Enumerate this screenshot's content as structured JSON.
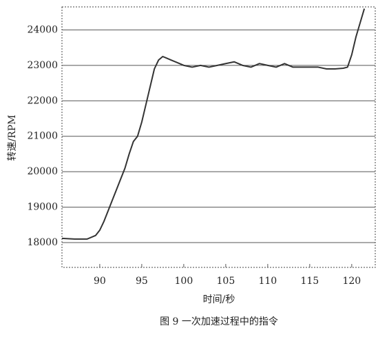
{
  "chart_data": {
    "type": "line",
    "y_label": "转速/RPM",
    "x_label": "时间/秒",
    "caption": "图 9 一次加速过程中的指令",
    "x": [
      85.5,
      87,
      88.5,
      89.5,
      90,
      90.5,
      91,
      91.5,
      92,
      92.5,
      93,
      93.5,
      94,
      94.5,
      95,
      95.5,
      96,
      96.5,
      97,
      97.5,
      98,
      98.5,
      99,
      100,
      101,
      102,
      103,
      104,
      105,
      106,
      107,
      108,
      109,
      110,
      111,
      112,
      113,
      114,
      115,
      116,
      117,
      118,
      119,
      119.5,
      120,
      120.5,
      121,
      121.5
    ],
    "series": [
      {
        "color": "#333333",
        "values": [
          18120,
          18100,
          18100,
          18200,
          18350,
          18600,
          18900,
          19200,
          19500,
          19800,
          20100,
          20500,
          20850,
          21000,
          21400,
          21900,
          22400,
          22900,
          23150,
          23250,
          23200,
          23150,
          23100,
          23000,
          22950,
          23000,
          22950,
          23000,
          23050,
          23100,
          23000,
          22950,
          23050,
          23000,
          22950,
          23050,
          22950,
          22950,
          22950,
          22950,
          22900,
          22900,
          22920,
          22950,
          23300,
          23800,
          24200,
          24600
        ]
      }
    ],
    "xlim": [
      85.5,
      122.8
    ],
    "xticks": [
      90,
      95,
      100,
      105,
      110,
      115,
      120
    ],
    "ylim": [
      17300,
      24650
    ],
    "yticks": [
      18000,
      19000,
      20000,
      21000,
      22000,
      23000,
      24000
    ],
    "grid": true
  }
}
